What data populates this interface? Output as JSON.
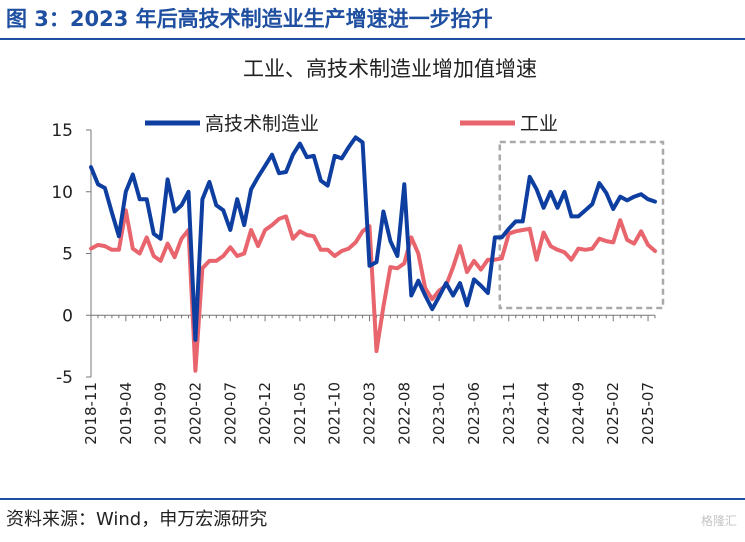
{
  "figure_title": "图 3：2023 年后高技术制造业生产增速进一步抬升",
  "source": "资料来源：Wind，申万宏源研究",
  "watermark": "格隆汇",
  "colors": {
    "brand": "#1f4fa0",
    "series_high_tech": "#0d3ea0",
    "series_industry": "#e8656e",
    "highlight_box": "#a9a9a9"
  },
  "chart_data": {
    "type": "line",
    "title": "工业、高技术制造业增加值增速",
    "xlabel": "",
    "ylabel": "",
    "ylim": [
      -5,
      15
    ],
    "yticks": [
      -5,
      0,
      5,
      10,
      15
    ],
    "grid": false,
    "legend_position": "top",
    "x_tick_labels": [
      "2018-11",
      "2019-04",
      "2019-09",
      "2020-02",
      "2020-07",
      "2020-12",
      "2021-05",
      "2021-10",
      "2022-03",
      "2022-08",
      "2023-01",
      "2023-06",
      "2023-11",
      "2024-04",
      "2024-09",
      "2025-02",
      "2025-07"
    ],
    "x": [
      "2018-11",
      "2018-12",
      "2019-01",
      "2019-02",
      "2019-03",
      "2019-04",
      "2019-05",
      "2019-06",
      "2019-07",
      "2019-08",
      "2019-09",
      "2019-10",
      "2019-11",
      "2019-12",
      "2020-01",
      "2020-02",
      "2020-03",
      "2020-04",
      "2020-05",
      "2020-06",
      "2020-07",
      "2020-08",
      "2020-09",
      "2020-10",
      "2020-11",
      "2020-12",
      "2021-01",
      "2021-02",
      "2021-03",
      "2021-04",
      "2021-05",
      "2021-06",
      "2021-07",
      "2021-08",
      "2021-09",
      "2021-10",
      "2021-11",
      "2021-12",
      "2022-01",
      "2022-02",
      "2022-03",
      "2022-04",
      "2022-05",
      "2022-06",
      "2022-07",
      "2022-08",
      "2022-09",
      "2022-10",
      "2022-11",
      "2022-12",
      "2023-01",
      "2023-02",
      "2023-03",
      "2023-04",
      "2023-05",
      "2023-06",
      "2023-07",
      "2023-08",
      "2023-09",
      "2023-10",
      "2023-11",
      "2023-12",
      "2024-01",
      "2024-02",
      "2024-03",
      "2024-04",
      "2024-05",
      "2024-06",
      "2024-07",
      "2024-08",
      "2024-09",
      "2024-10",
      "2024-11",
      "2024-12",
      "2025-01",
      "2025-02",
      "2025-03",
      "2025-04",
      "2025-05",
      "2025-06",
      "2025-07",
      "2025-08"
    ],
    "series": [
      {
        "name": "高技术制造业",
        "color": "#0d3ea0",
        "values": [
          12.0,
          10.6,
          10.3,
          8.3,
          6.4,
          10.0,
          11.4,
          9.4,
          9.4,
          6.6,
          6.2,
          11.0,
          8.4,
          8.9,
          10.0,
          -2.0,
          9.4,
          10.8,
          8.9,
          8.5,
          6.9,
          9.4,
          7.3,
          10.2,
          11.2,
          12.1,
          13.0,
          11.5,
          11.6,
          13.0,
          13.9,
          12.8,
          12.9,
          10.9,
          10.5,
          12.9,
          12.7,
          13.6,
          14.4,
          14.0,
          4.0,
          4.3,
          8.4,
          6.0,
          4.8,
          10.6,
          1.6,
          2.8,
          1.6,
          0.5,
          1.5,
          2.6,
          1.6,
          2.6,
          0.8,
          2.9,
          2.4,
          1.8,
          6.3,
          6.3,
          7.0,
          7.6,
          7.6,
          11.2,
          10.2,
          8.7,
          10.0,
          8.7,
          10.0,
          8.0,
          8.0,
          8.5,
          9.0,
          10.7,
          9.9,
          8.6,
          9.6,
          9.3,
          9.6,
          9.8,
          9.4,
          9.2
        ]
      },
      {
        "name": "工业",
        "color": "#e8656e",
        "values": [
          5.4,
          5.7,
          5.6,
          5.3,
          5.3,
          8.5,
          5.4,
          5.0,
          6.3,
          4.8,
          4.4,
          5.8,
          4.7,
          6.2,
          6.9,
          -4.5,
          3.8,
          4.4,
          4.4,
          4.8,
          5.5,
          4.8,
          5.0,
          6.9,
          5.6,
          6.9,
          7.3,
          7.8,
          8.0,
          6.2,
          6.8,
          6.5,
          6.4,
          5.3,
          5.3,
          4.8,
          5.2,
          5.4,
          5.9,
          6.8,
          7.2,
          -2.9,
          0.7,
          3.9,
          3.8,
          4.2,
          6.3,
          5.0,
          2.2,
          1.3,
          2.0,
          2.4,
          3.9,
          5.6,
          3.5,
          4.4,
          3.7,
          4.5,
          4.5,
          4.6,
          6.6,
          6.8,
          6.9,
          7.0,
          4.5,
          6.7,
          5.6,
          5.3,
          5.1,
          4.5,
          5.4,
          5.3,
          5.4,
          6.2,
          6.0,
          5.9,
          7.7,
          6.1,
          5.8,
          6.8,
          5.7,
          5.2
        ]
      }
    ],
    "annotations": [
      {
        "type": "dashed-box",
        "description_range": [
          "2023-11",
          "2025-08"
        ]
      }
    ]
  }
}
